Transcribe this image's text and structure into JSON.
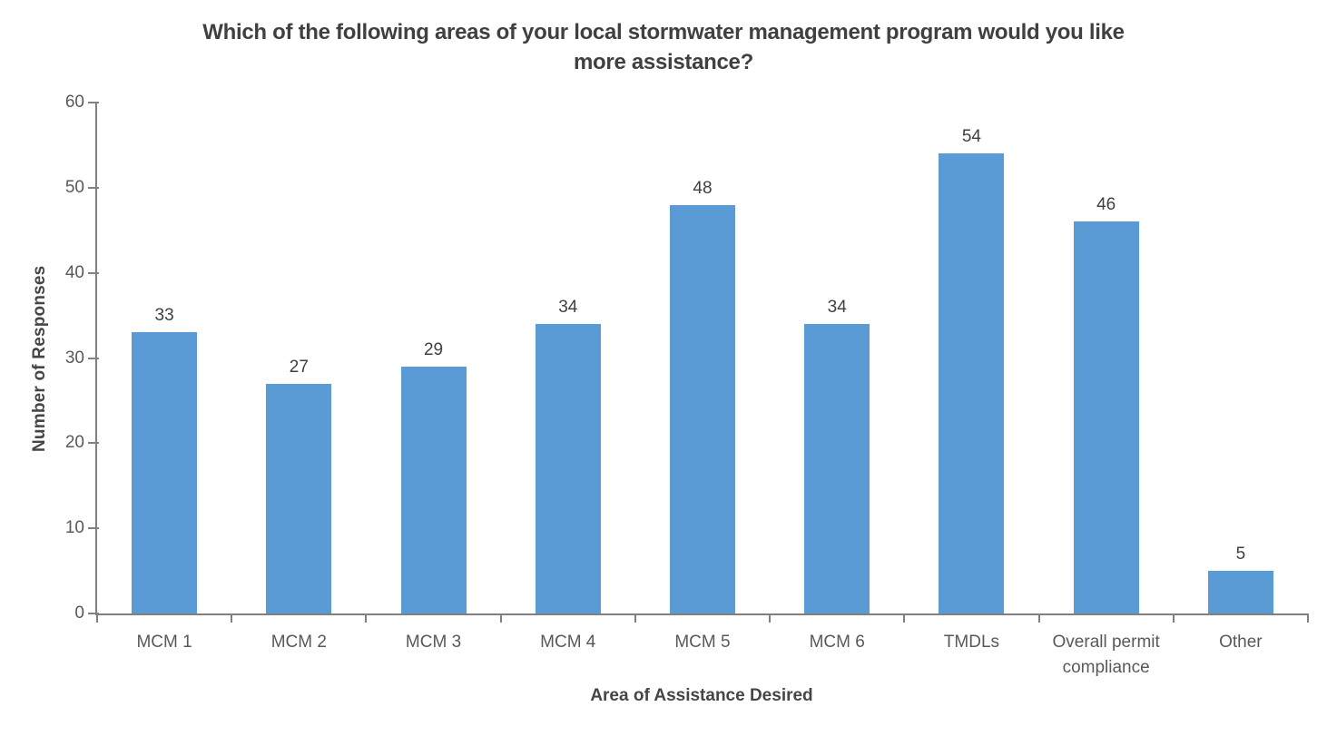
{
  "chart_data": {
    "type": "bar",
    "title": "Which of the following areas of your local stormwater management program would you like more assistance?",
    "title_lines": [
      "Which of the following areas of your local stormwater management program would you like",
      "more assistance?"
    ],
    "categories": [
      "MCM 1",
      "MCM 2",
      "MCM 3",
      "MCM 4",
      "MCM 5",
      "MCM 6",
      "TMDLs",
      "Overall permit compliance",
      "Other"
    ],
    "values": [
      33,
      27,
      29,
      34,
      48,
      34,
      54,
      46,
      5
    ],
    "xlabel": "Area of Assistance Desired",
    "ylabel": "Number of Responses",
    "ylim": [
      0,
      60
    ],
    "yticks": [
      0,
      10,
      20,
      30,
      40,
      50,
      60
    ],
    "grid": false,
    "legend": false,
    "colors": {
      "bar": "#5B9BD5",
      "axis": "#808080",
      "tick_label": "#595959",
      "data_label": "#3F3F3F",
      "title": "#404040"
    }
  }
}
